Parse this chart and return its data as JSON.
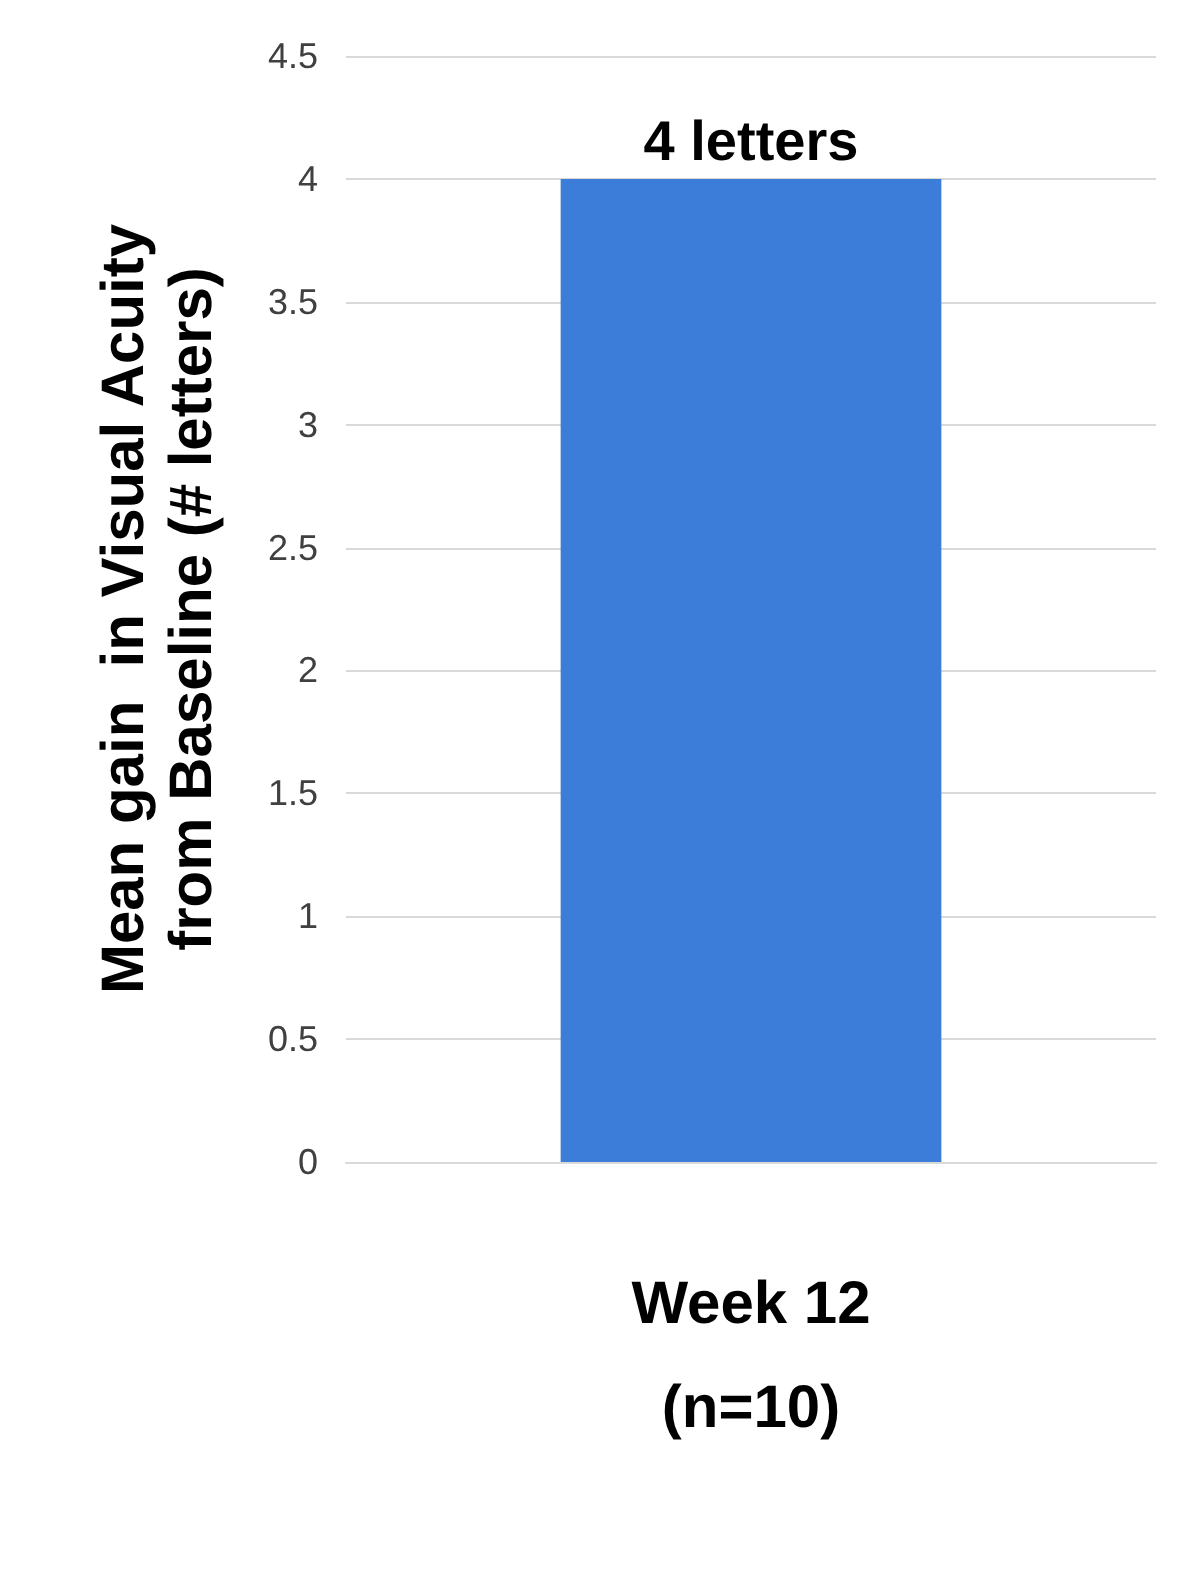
{
  "chart_data": {
    "type": "bar",
    "ylabel": "Mean gain  in Visual Acuity\nfrom Baseline (# letters)",
    "categories": [
      "Week 12\n(n=10)"
    ],
    "values": [
      4
    ],
    "value_labels": [
      "4 letters"
    ],
    "color": "#3b7dd8",
    "ylim": [
      0,
      4.5
    ],
    "yticks": [
      0,
      0.5,
      1,
      1.5,
      2,
      2.5,
      3,
      3.5,
      4,
      4.5
    ],
    "grid": "y"
  }
}
